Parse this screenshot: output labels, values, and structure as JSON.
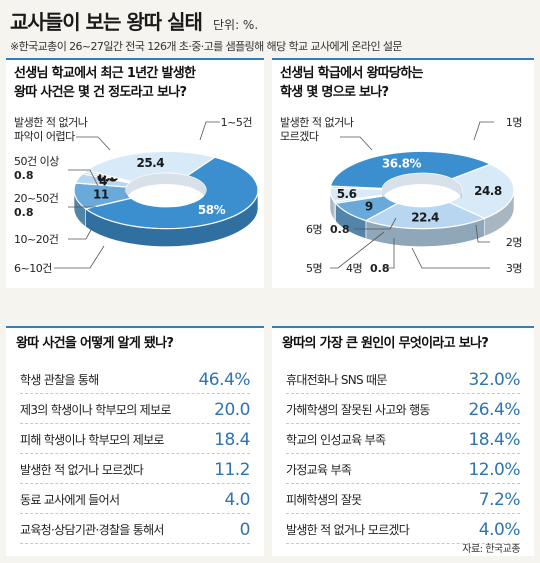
{
  "header": {
    "title": "교사들이 보는 왕따 실태",
    "unit": "단위: %.",
    "note": "※한국교총이 26~27일간 전국 126개 초·중·고를 샘플링해 해당 학교 교사에게 온라인 설문"
  },
  "colors": {
    "dark": "#3c8fce",
    "mid": "#6aaadb",
    "light": "#b8d6ef",
    "pale": "#d8e9f7",
    "accent_value": "#2e74b5"
  },
  "chart_data": [
    {
      "type": "pie",
      "title": "선생님 학교에서 최근 1년간 발생한 왕따 사건은 몇 건 정도라고 보나?",
      "title_lines": [
        "선생님 학교에서 최근 1년간 발생한",
        "왕따 사건은 몇 건 정도라고 보나?"
      ],
      "series": [
        {
          "values": [
            58,
            11,
            4,
            0.8,
            0.8,
            25.4
          ],
          "categories": [
            "1~5건",
            "6~10건",
            "10~20건",
            "20~50건",
            "50건 이상",
            "발생한 적 없거나 파악이 어렵다"
          ]
        }
      ],
      "value_labels": [
        "58%",
        "11",
        "4",
        "0.8",
        "0.8",
        "25.4"
      ],
      "callouts": {
        "c1": "1~5건",
        "c2": "6~10건",
        "c3": "10~20건",
        "c4": "20~50건",
        "c4v": "0.8",
        "c5": "50건 이상",
        "c5v": "0.8",
        "c6a": "발생한 적 없거나",
        "c6b": "파악이 어렵다"
      }
    },
    {
      "type": "pie",
      "title": "선생님 학급에서 왕따당하는 학생 몇 명으로 보나?",
      "title_lines": [
        "선생님 학급에서 왕따당하는",
        "학생 몇 명으로 보나?"
      ],
      "series": [
        {
          "values": [
            24.8,
            22.4,
            9,
            0.8,
            5.6,
            0.8,
            36.8
          ],
          "categories": [
            "1명",
            "2명",
            "3명",
            "4명",
            "5명",
            "6명",
            "발생한 적 없거나 모르겠다"
          ]
        }
      ],
      "value_labels": [
        "24.8",
        "22.4",
        "9",
        "",
        "5.6",
        "",
        "36.8%"
      ],
      "callouts": {
        "c1": "1명",
        "c2": "2명",
        "c3": "3명",
        "c4": "4명",
        "c4v": "0.8",
        "c5": "5명",
        "c6": "6명",
        "c6v": "0.8",
        "c7a": "발생한 적 없거나",
        "c7b": "모르겠다"
      }
    },
    {
      "type": "table",
      "title": "왕따 사건을 어떻게 알게 됐나?",
      "categories": [
        "학생 관찰을 통해",
        "제3의 학생이나 학부모의 제보로",
        "피해 학생이나 학부모의 제보로",
        "발생한 적 없거나 모르겠다",
        "동료 교사에게 들어서",
        "교육청·상담기관·경찰을 통해서"
      ],
      "values": [
        46.4,
        20.0,
        18.4,
        11.2,
        4.0,
        0
      ],
      "value_labels": [
        "46.4%",
        "20.0",
        "18.4",
        "11.2",
        "4.0",
        "0"
      ]
    },
    {
      "type": "table",
      "title": "왕따의 가장 큰 원인이 무엇이라고 보나?",
      "categories": [
        "휴대전화나 SNS 때문",
        "가해학생의 잘못된 사고와 행동",
        "학교의 인성교육 부족",
        "가정교육 부족",
        "피해학생의 잘못",
        "발생한 적 없거나 모르겠다"
      ],
      "values": [
        32.0,
        26.4,
        18.4,
        12.0,
        7.2,
        4.0
      ],
      "value_labels": [
        "32.0%",
        "26.4%",
        "18.4%",
        "12.0%",
        "7.2%",
        "4.0%"
      ]
    }
  ],
  "source": "자료: 한국교총"
}
